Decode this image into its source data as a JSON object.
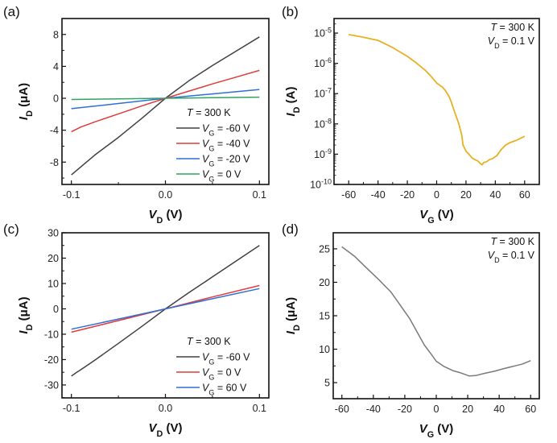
{
  "chart_data": [
    {
      "panel": "(a)",
      "type": "line",
      "xlabel": "V_D (V)",
      "ylabel": "I_D (μA)",
      "xlim": [
        -0.11,
        0.11
      ],
      "ylim": [
        -10.8,
        10.0
      ],
      "xticks": [
        -0.1,
        0.0,
        0.1
      ],
      "xtick_labels": [
        "-0.1",
        "0.0",
        "0.1"
      ],
      "yticks": [
        8,
        4,
        0,
        -4,
        -8
      ],
      "ytick_labels": [
        "8",
        "4",
        "0",
        "-4",
        "-8"
      ],
      "yscale": "linear",
      "legend_title": "T = 300 K",
      "legend_placement": "bottom-right",
      "series": [
        {
          "name": "V_G = -60 V",
          "label_prefix": "V",
          "label_sub": "G",
          "label_suffix": " = -60 V",
          "color": "#404040",
          "x": [
            -0.1,
            -0.09,
            -0.075,
            -0.05,
            -0.025,
            0.0,
            0.025,
            0.05,
            0.075,
            0.1
          ],
          "y": [
            -9.6,
            -8.6,
            -7.1,
            -4.9,
            -2.5,
            0.0,
            2.2,
            4.1,
            5.9,
            7.7
          ]
        },
        {
          "name": "V_G = -40 V",
          "label_prefix": "V",
          "label_sub": "G",
          "label_suffix": " = -40 V",
          "color": "#e23b3b",
          "x": [
            -0.1,
            -0.09,
            -0.075,
            -0.05,
            -0.025,
            0.0,
            0.025,
            0.05,
            0.075,
            0.1
          ],
          "y": [
            -4.2,
            -3.6,
            -2.95,
            -1.95,
            -0.95,
            0.0,
            0.9,
            1.8,
            2.65,
            3.5
          ]
        },
        {
          "name": "V_G = -20 V",
          "label_prefix": "V",
          "label_sub": "G",
          "label_suffix": " = -20 V",
          "color": "#2f6fd8",
          "x": [
            -0.1,
            -0.05,
            0.0,
            0.05,
            0.1
          ],
          "y": [
            -1.3,
            -0.65,
            0.0,
            0.55,
            1.1
          ]
        },
        {
          "name": "V_G = 0 V",
          "label_prefix": "V",
          "label_sub": "G",
          "label_suffix": " =    0 V",
          "color": "#2fa35f",
          "x": [
            -0.1,
            0.0,
            0.1
          ],
          "y": [
            -0.15,
            0.0,
            0.15
          ]
        }
      ]
    },
    {
      "panel": "(b)",
      "type": "line",
      "xlabel": "V_G (V)",
      "ylabel": "I_D (A)",
      "xlim": [
        -70,
        70
      ],
      "ylim_log10": [
        -10,
        -4.52
      ],
      "yscale": "log",
      "xticks": [
        -60,
        -40,
        -20,
        0,
        20,
        40,
        60
      ],
      "xtick_labels": [
        "-60",
        "-40",
        "-20",
        "0",
        "20",
        "40",
        "60"
      ],
      "yticks_log10": [
        -5,
        -6,
        -7,
        -8,
        -9,
        -10
      ],
      "ytick_labels": [
        "-5",
        "-6",
        "-7",
        "-8",
        "-9",
        "-10"
      ],
      "ytick_base": "10",
      "annotation": [
        "T = 300 K",
        "V_D = 0.1 V"
      ],
      "series": [
        {
          "name": "I_D",
          "color": "#e8b023",
          "x": [
            -60,
            -50,
            -40,
            -30,
            -20,
            -14,
            -8,
            -4,
            0,
            4,
            6,
            8.5,
            10,
            12,
            15,
            17,
            18,
            20,
            22,
            24,
            26,
            28,
            30,
            31,
            32,
            34,
            36,
            38,
            41,
            44,
            47,
            50,
            54,
            57,
            60
          ],
          "log10_y": [
            -5.05,
            -5.14,
            -5.24,
            -5.48,
            -5.77,
            -5.98,
            -6.22,
            -6.42,
            -6.65,
            -6.79,
            -6.9,
            -7.1,
            -7.28,
            -7.58,
            -7.98,
            -8.35,
            -8.7,
            -8.9,
            -9.0,
            -9.12,
            -9.18,
            -9.22,
            -9.32,
            -9.35,
            -9.28,
            -9.25,
            -9.18,
            -9.15,
            -9.05,
            -8.85,
            -8.7,
            -8.62,
            -8.55,
            -8.48,
            -8.41
          ]
        }
      ]
    },
    {
      "panel": "(c)",
      "type": "line",
      "xlabel": "V_D (V)",
      "ylabel": "I_D (μA)",
      "xlim": [
        -0.11,
        0.11
      ],
      "ylim": [
        -35.1,
        30
      ],
      "xticks": [
        -0.1,
        0.0,
        0.1
      ],
      "xtick_labels": [
        "-0.1",
        "0.0",
        "0.1"
      ],
      "yticks": [
        30,
        20,
        10,
        0,
        -10,
        -20,
        -30
      ],
      "ytick_labels": [
        "30",
        "20",
        "10",
        "0",
        "-10",
        "-20",
        "-30"
      ],
      "yscale": "linear",
      "legend_title": "T = 300 K",
      "legend_placement": "bottom-right",
      "series": [
        {
          "name": "V_G = -60 V",
          "label_prefix": "V",
          "label_sub": "G",
          "label_suffix": " = -60 V",
          "color": "#404040",
          "x": [
            -0.1,
            -0.095,
            -0.09,
            -0.075,
            -0.05,
            -0.025,
            0.0,
            0.025,
            0.05,
            0.075,
            0.1
          ],
          "y": [
            -26.5,
            -25.2,
            -24.0,
            -20.2,
            -13.6,
            -6.9,
            0.0,
            6.4,
            12.6,
            18.8,
            25.0
          ]
        },
        {
          "name": "V_G = 0 V",
          "label_prefix": "V",
          "label_sub": "G",
          "label_suffix": " =    0 V",
          "color": "#e23b3b",
          "x": [
            -0.1,
            -0.05,
            0.0,
            0.05,
            0.1
          ],
          "y": [
            -9.2,
            -4.6,
            0.0,
            4.7,
            9.2
          ]
        },
        {
          "name": "V_G = 60 V",
          "label_prefix": "V",
          "label_sub": "G",
          "label_suffix": " =  60 V",
          "color": "#2f6fd8",
          "x": [
            -0.1,
            -0.05,
            0.0,
            0.05,
            0.1
          ],
          "y": [
            -8.0,
            -4.0,
            0.0,
            4.0,
            8.0
          ]
        }
      ]
    },
    {
      "panel": "(d)",
      "type": "line",
      "xlabel": "V_G (V)",
      "ylabel": "I_D (μA)",
      "xlim": [
        -65.5,
        65.5
      ],
      "ylim": [
        2.6,
        27.4
      ],
      "yscale": "linear",
      "xticks": [
        -60,
        -40,
        -20,
        0,
        20,
        40,
        60
      ],
      "xtick_labels": [
        "-60",
        "-40",
        "-20",
        "0",
        "20",
        "40",
        "60"
      ],
      "yticks": [
        25,
        20,
        15,
        10,
        5
      ],
      "ytick_labels": [
        "25",
        "20",
        "15",
        "10",
        "5"
      ],
      "annotation": [
        "T = 300 K",
        "V_D = 0.1 V"
      ],
      "series": [
        {
          "name": "I_D",
          "color": "#7a7a7a",
          "x": [
            -60,
            -52,
            -45,
            -37,
            -29,
            -23,
            -17,
            -12,
            -7.5,
            -3,
            0,
            5,
            10.5,
            15,
            21,
            25,
            31,
            37,
            43,
            50,
            55,
            60
          ],
          "y": [
            25.3,
            23.9,
            22.3,
            20.5,
            18.6,
            16.6,
            14.6,
            12.5,
            10.6,
            9.2,
            8.2,
            7.4,
            6.8,
            6.5,
            6.0,
            6.05,
            6.4,
            6.7,
            7.1,
            7.5,
            7.8,
            8.3
          ]
        }
      ]
    }
  ]
}
